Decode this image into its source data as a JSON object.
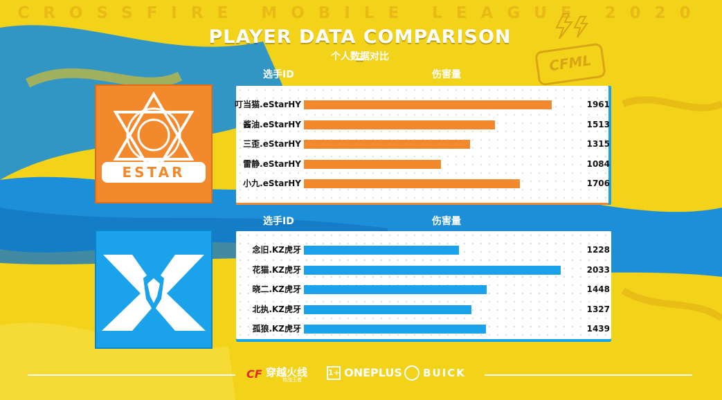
{
  "header": {
    "league": "CROSSFIRE MOBILE LEAGUE 2020",
    "title": "PLAYER DATA COMPARISON",
    "subtitle": "个人数据对比"
  },
  "logos": {
    "cfml": "CFML",
    "estar_wordmark": "ESTAR"
  },
  "colors": {
    "estar": "#f28a2d",
    "kz": "#1aa3ea",
    "background": "#f3d21a"
  },
  "chart_data": [
    {
      "type": "bar",
      "orientation": "horizontal",
      "team": "eStarHY",
      "xlabel": "伤害量",
      "ylabel": "选手ID",
      "categories": [
        "叮当猫.eStarHY",
        "酱油.eStarHY",
        "三歪.eStarHY",
        "雷静.eStarHY",
        "小九.eStarHY"
      ],
      "values": [
        1961,
        1513,
        1315,
        1084,
        1706
      ],
      "xlim": [
        0,
        2300
      ],
      "color": "#f28a2d"
    },
    {
      "type": "bar",
      "orientation": "horizontal",
      "team": "KZ虎牙",
      "xlabel": "伤害量",
      "ylabel": "选手ID",
      "categories": [
        "念旧.KZ虎牙",
        "花猫.KZ虎牙",
        "晓二.KZ虎牙",
        "北执.KZ虎牙",
        "孤狼.KZ虎牙"
      ],
      "values": [
        1228,
        2033,
        1448,
        1327,
        1439
      ],
      "xlim": [
        0,
        2300
      ],
      "color": "#1aa3ea"
    }
  ],
  "footer": {
    "game_logo": "穿越火线",
    "game_logo_sub": "枪战王者",
    "oneplus": "ONEPLUS",
    "buick": "BUICK"
  }
}
